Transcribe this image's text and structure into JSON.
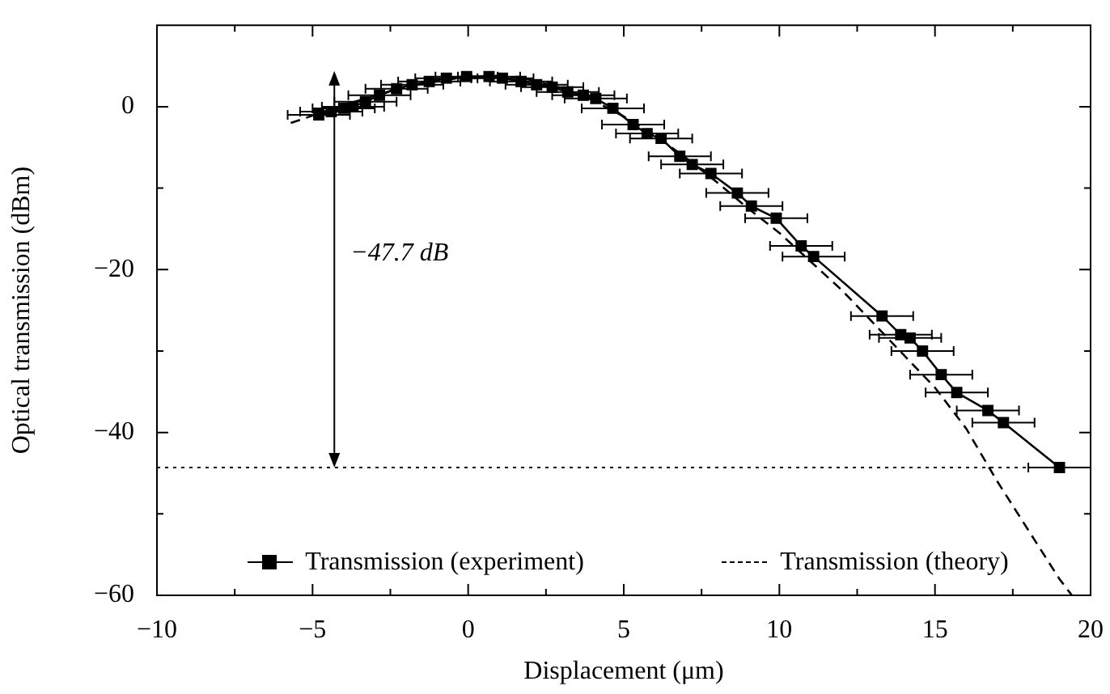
{
  "chart_data": {
    "type": "line",
    "xlabel": "Displacement (μm)",
    "ylabel": "Optical transmission (dBm)",
    "xlim": [
      -10,
      20
    ],
    "ylim": [
      -60,
      10
    ],
    "xticks": [
      -10,
      {
        "value": -7.5,
        "label": null
      },
      -5,
      {
        "value": -2.5,
        "label": null
      },
      0,
      {
        "value": 2.5,
        "label": null
      },
      5,
      {
        "value": 7.5,
        "label": null
      },
      10,
      {
        "value": 12.5,
        "label": null
      },
      15,
      {
        "value": 17.5,
        "label": null
      },
      20
    ],
    "yticks": [
      -60,
      {
        "value": -50,
        "label": null
      },
      -40,
      {
        "value": -30,
        "label": null
      },
      -20,
      {
        "value": -10,
        "label": null
      },
      0
    ],
    "legend": "bottom",
    "series": [
      {
        "name": "Transmission (experiment)",
        "color": "#000000",
        "marker": "square",
        "line_style": "solid",
        "x": [
          -4.8,
          -4.4,
          -4.0,
          -3.7,
          -3.3,
          -2.85,
          -2.3,
          -1.8,
          -1.25,
          -0.7,
          -0.05,
          0.67,
          1.1,
          1.7,
          2.2,
          2.7,
          3.2,
          3.7,
          4.1,
          4.65,
          5.3,
          5.75,
          6.2,
          6.8,
          7.2,
          7.8,
          8.65,
          9.1,
          9.9,
          10.7,
          11.1,
          13.3,
          13.9,
          14.2,
          14.6,
          15.2,
          15.7,
          16.7,
          17.2,
          19.0
        ],
        "values": [
          -1.0,
          -0.6,
          -0.2,
          0.0,
          0.6,
          1.4,
          2.2,
          2.7,
          3.1,
          3.5,
          3.7,
          3.7,
          3.5,
          3.1,
          2.7,
          2.4,
          1.8,
          1.4,
          1.0,
          -0.2,
          -2.2,
          -3.3,
          -3.9,
          -6.1,
          -7.1,
          -8.2,
          -10.6,
          -12.2,
          -13.7,
          -17.1,
          -18.4,
          -25.7,
          -28.0,
          -28.4,
          -30.0,
          -32.9,
          -35.1,
          -37.3,
          -38.8,
          -44.3
        ],
        "xerrors": [
          1,
          1,
          1,
          1,
          1,
          1,
          1,
          1,
          1,
          1,
          1,
          1,
          1,
          1,
          1,
          1,
          1,
          1,
          1,
          1,
          1,
          1,
          1,
          1,
          1,
          1,
          1,
          1,
          1,
          1,
          1,
          1,
          1,
          1,
          1,
          1,
          1,
          1,
          1,
          1
        ]
      },
      {
        "name": "Transmission (theory)",
        "color": "#000000",
        "marker": "none",
        "line_style": "dashed",
        "x": [
          -5.7,
          -4,
          -2,
          0,
          1,
          2,
          3,
          4,
          5,
          6,
          7,
          8,
          9,
          10,
          11,
          12,
          13,
          14,
          15,
          16,
          17,
          18,
          19,
          19.4
        ],
        "values": [
          -2,
          0.2,
          2.5,
          3.7,
          3.8,
          3.3,
          2.3,
          0.8,
          -1.2,
          -3.5,
          -6.3,
          -9.3,
          -12.5,
          -15.5,
          -19,
          -22.5,
          -26.5,
          -30.5,
          -34.5,
          -39.5,
          -46,
          -52,
          -58,
          -60
        ]
      }
    ],
    "ref_lines": [
      {
        "axis": "y",
        "value": -44.3,
        "line_style": "dotted",
        "color": "#000000"
      }
    ],
    "annotations": [
      "−47.7 dB"
    ]
  }
}
